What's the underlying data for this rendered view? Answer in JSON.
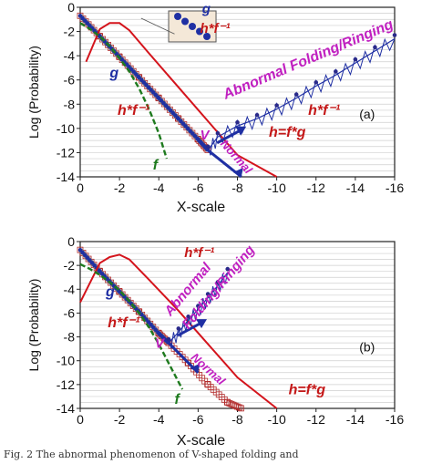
{
  "chart_data": [
    {
      "type": "line",
      "panel_label": "(a)",
      "xlabel": "X-scale",
      "ylabel": "Log (Probability)",
      "xlim": [
        0,
        -16
      ],
      "ylim": [
        -14,
        0
      ],
      "x_ticks": [
        "0",
        "-2",
        "-4",
        "-6",
        "-8",
        "-10",
        "-12",
        "-14",
        "-16"
      ],
      "y_ticks": [
        "0",
        "-2",
        "-4",
        "-6",
        "-8",
        "-10",
        "-12",
        "-14"
      ],
      "grid": true,
      "series": [
        {
          "name": "h*f⁻¹",
          "color": "#b22a2a",
          "x": [
            0,
            -1,
            -2,
            -3,
            -4,
            -5,
            -6,
            -6.5
          ],
          "y": [
            -0.7,
            -2.4,
            -4.1,
            -5.8,
            -7.5,
            -9.2,
            -10.9,
            -11.8
          ]
        },
        {
          "name": "g",
          "color": "#1f2fa3",
          "x": [
            0,
            -1,
            -2,
            -3,
            -4,
            -5,
            -6,
            -6.5
          ],
          "y": [
            -0.7,
            -2.4,
            -4.1,
            -5.8,
            -7.5,
            -9.2,
            -10.9,
            -11.8
          ]
        },
        {
          "name": "h=f*g",
          "color": "#d4141c",
          "x": [
            -0.3,
            -1,
            -1.5,
            -2,
            -2.5,
            -3.5,
            -5,
            -6.5,
            -8,
            -10
          ],
          "y": [
            -4.5,
            -1.8,
            -1.3,
            -1.3,
            -1.9,
            -3.8,
            -6.6,
            -9.4,
            -12.2,
            -14
          ]
        },
        {
          "name": "f",
          "color": "#1e7a1e",
          "x": [
            0,
            -0.5,
            -1,
            -1.5,
            -2,
            -2.5,
            -3,
            -3.5,
            -4,
            -4.4
          ],
          "y": [
            -1.3,
            -1.8,
            -2.4,
            -3.2,
            -4.2,
            -5.3,
            -6.7,
            -8.4,
            -10.4,
            -12.5
          ]
        },
        {
          "name": "Abnormal Folding/Ringing",
          "color": "#1f2fa3",
          "x": [
            -6.5,
            -7,
            -8,
            -9,
            -10,
            -11,
            -12,
            -13,
            -14,
            -15,
            -16
          ],
          "y": [
            -11.8,
            -10.7,
            -9.8,
            -9.2,
            -8.4,
            -7.5,
            -6.5,
            -5.6,
            -4.6,
            -3.6,
            -2.6
          ]
        },
        {
          "name": "Normal",
          "color": "#1f2fa3",
          "x": [
            -6.5,
            -8.2
          ],
          "y": [
            -11.8,
            -14
          ]
        }
      ],
      "annotations": {
        "h_finv_1": "h*f⁻¹",
        "h_finv_2": "h*f⁻¹",
        "h_finv_3": "h*f⁻¹",
        "g_1": "g",
        "g_2": "g",
        "f": "f",
        "v": "V",
        "h_eq": "h=f*g",
        "abnormal": "Abnormal Folding/Ringing",
        "normal": "Normal"
      }
    },
    {
      "type": "line",
      "panel_label": "(b)",
      "xlabel": "X-scale",
      "ylabel": "Log (Probability)",
      "xlim": [
        0,
        -16
      ],
      "ylim": [
        -14,
        0
      ],
      "x_ticks": [
        "0",
        "-2",
        "-4",
        "-6",
        "-8",
        "-10",
        "-12",
        "-14",
        "-16"
      ],
      "y_ticks": [
        "0",
        "-2",
        "-4",
        "-6",
        "-8",
        "-10",
        "-12",
        "-14"
      ],
      "grid": true,
      "series": [
        {
          "name": "h*f⁻¹",
          "color": "#b22a2a",
          "x": [
            0,
            -1,
            -2,
            -3,
            -4,
            -4.5,
            -5.5,
            -6.5,
            -7.5,
            -8.2
          ],
          "y": [
            -0.7,
            -2.5,
            -4.2,
            -5.9,
            -7.7,
            -8.5,
            -10.2,
            -12,
            -13.5,
            -14
          ]
        },
        {
          "name": "g",
          "color": "#1f2fa3",
          "x": [
            0,
            -1,
            -2,
            -3,
            -4,
            -4.5
          ],
          "y": [
            -0.7,
            -2.5,
            -4.2,
            -5.9,
            -7.7,
            -8.5
          ]
        },
        {
          "name": "h=f*g",
          "color": "#d4141c",
          "x": [
            0,
            -1,
            -1.5,
            -2,
            -2.5,
            -3.5,
            -5,
            -6.5,
            -8,
            -10
          ],
          "y": [
            -5.1,
            -1.8,
            -1.3,
            -1.1,
            -1.5,
            -3.2,
            -5.8,
            -8.6,
            -11.4,
            -14
          ]
        },
        {
          "name": "f",
          "color": "#1e7a1e",
          "x": [
            0,
            -0.5,
            -1,
            -1.5,
            -2,
            -2.5,
            -3,
            -3.5,
            -4,
            -4.5,
            -5.2
          ],
          "y": [
            -1.9,
            -2.3,
            -2.8,
            -3.4,
            -4.1,
            -5,
            -6,
            -7.2,
            -8.6,
            -10.2,
            -12.4
          ]
        },
        {
          "name": "Abnormal Folding/Ringing",
          "color": "#1f2fa3",
          "x": [
            -4.5,
            -5,
            -5.5,
            -6,
            -6.5,
            -7,
            -7.5
          ],
          "y": [
            -8.5,
            -7.6,
            -6.6,
            -5.7,
            -4.7,
            -3.7,
            -2.6
          ]
        },
        {
          "name": "Normal",
          "color": "#1f2fa3",
          "x": [
            -4.5,
            -6
          ],
          "y": [
            -8.5,
            -11
          ]
        }
      ],
      "annotations": {
        "h_finv_1": "h*f⁻¹",
        "h_finv_2": "h*f⁻¹",
        "g": "g",
        "f": "f",
        "v": "V",
        "h_eq": "h=f*g",
        "abnormal_1": "Abnormal",
        "abnormal_2": "Folding/Ringing",
        "normal": "Normal"
      }
    }
  ],
  "caption": "Fig. 2  The abnormal phenomenon of V-shaped folding and"
}
